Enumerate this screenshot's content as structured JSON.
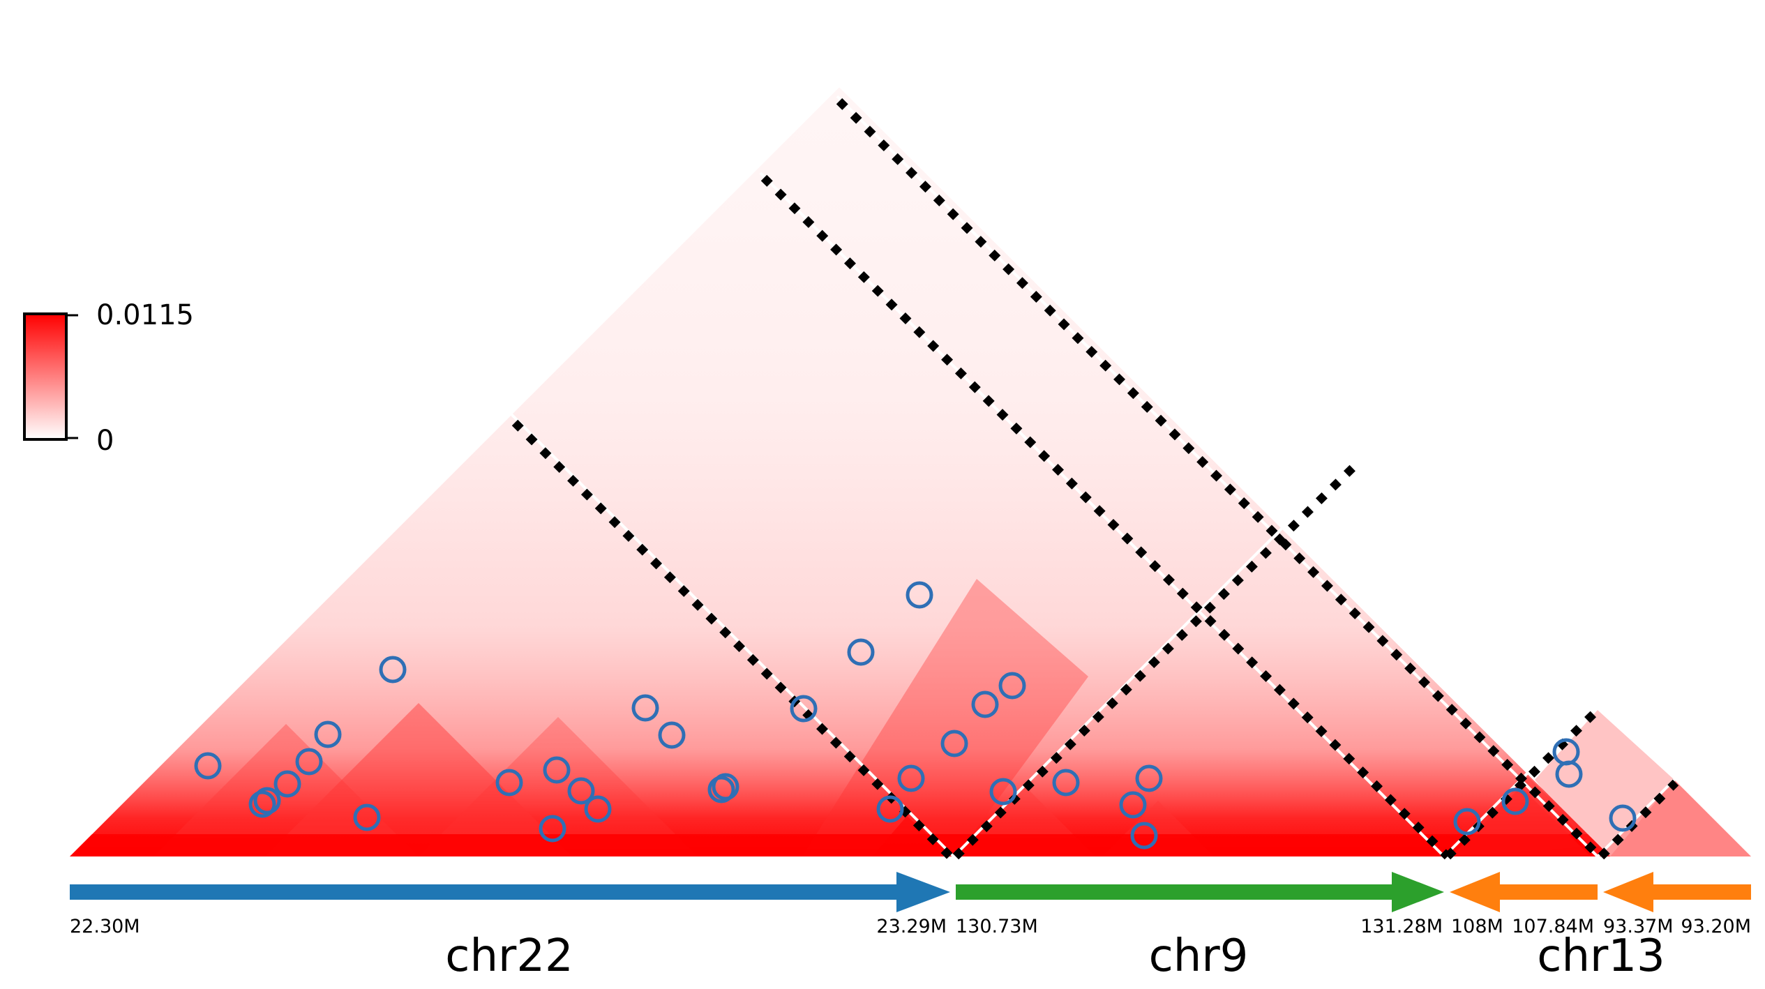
{
  "colorbar": {
    "max_label": "0.0115",
    "min_label": "0",
    "color_high": "#ff0000",
    "color_low": "#ffffff"
  },
  "segments": [
    {
      "chrom": "chr22",
      "start_label": "22.30M",
      "end_label": "23.29M",
      "direction": "forward",
      "color": "#1f77b4"
    },
    {
      "chrom": "chr9",
      "start_label": "130.73M",
      "end_label": "131.28M",
      "direction": "forward",
      "color": "#2ca02c"
    },
    {
      "chrom": "chr13",
      "start_label": "108M",
      "end_label": "107.84M",
      "direction": "reverse",
      "color": "#ff7f0e"
    },
    {
      "chrom": "chr13",
      "start_label": "93.37M",
      "end_label": "93.20M",
      "direction": "reverse",
      "color": "#ff7f0e"
    }
  ],
  "chrom_labels": [
    "chr22",
    "chr9",
    "chr13"
  ],
  "loop_marker_color": "#2f6fb5",
  "loop_count": 32
}
